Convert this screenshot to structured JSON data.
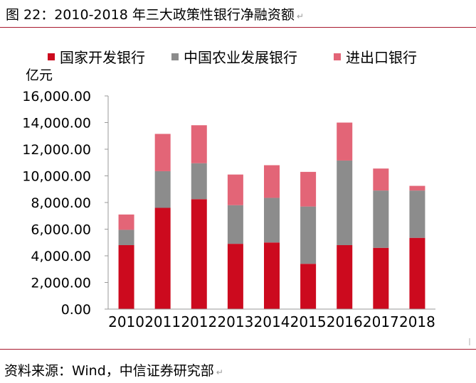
{
  "figure": {
    "title": "图 22：2010-2018 年三大政策性银行净融资额",
    "return_mark": "↵",
    "source": "资料来源：Wind，中信证券研究部"
  },
  "chart_data": {
    "type": "bar",
    "stacked": true,
    "title": "",
    "xlabel": "",
    "ylabel": "",
    "unit": "亿元",
    "categories": [
      "2010",
      "2011",
      "2012",
      "2013",
      "2014",
      "2015",
      "2016",
      "2017",
      "2018"
    ],
    "series": [
      {
        "name": "国家开发银行",
        "color": "#cc0a1e",
        "values": [
          4800,
          7600,
          8250,
          4900,
          5000,
          3400,
          4800,
          4600,
          5350
        ]
      },
      {
        "name": "中国农业发展银行",
        "color": "#8c8c8c",
        "values": [
          1150,
          2750,
          2700,
          2900,
          3350,
          4300,
          6350,
          4300,
          3550
        ]
      },
      {
        "name": "进出口银行",
        "color": "#e36577",
        "values": [
          1150,
          2800,
          2850,
          2300,
          2450,
          2600,
          2850,
          1650,
          350
        ]
      }
    ],
    "ylim": [
      0,
      16000
    ],
    "yticks": [
      0,
      2000,
      4000,
      6000,
      8000,
      10000,
      12000,
      14000,
      16000
    ],
    "ytick_labels": [
      "0.00",
      "2,000.00",
      "4,000.00",
      "6,000.00",
      "8,000.00",
      "10,000.00",
      "12,000.00",
      "14,000.00",
      "16,000.00"
    ],
    "legend_position": "top",
    "grid": false
  }
}
